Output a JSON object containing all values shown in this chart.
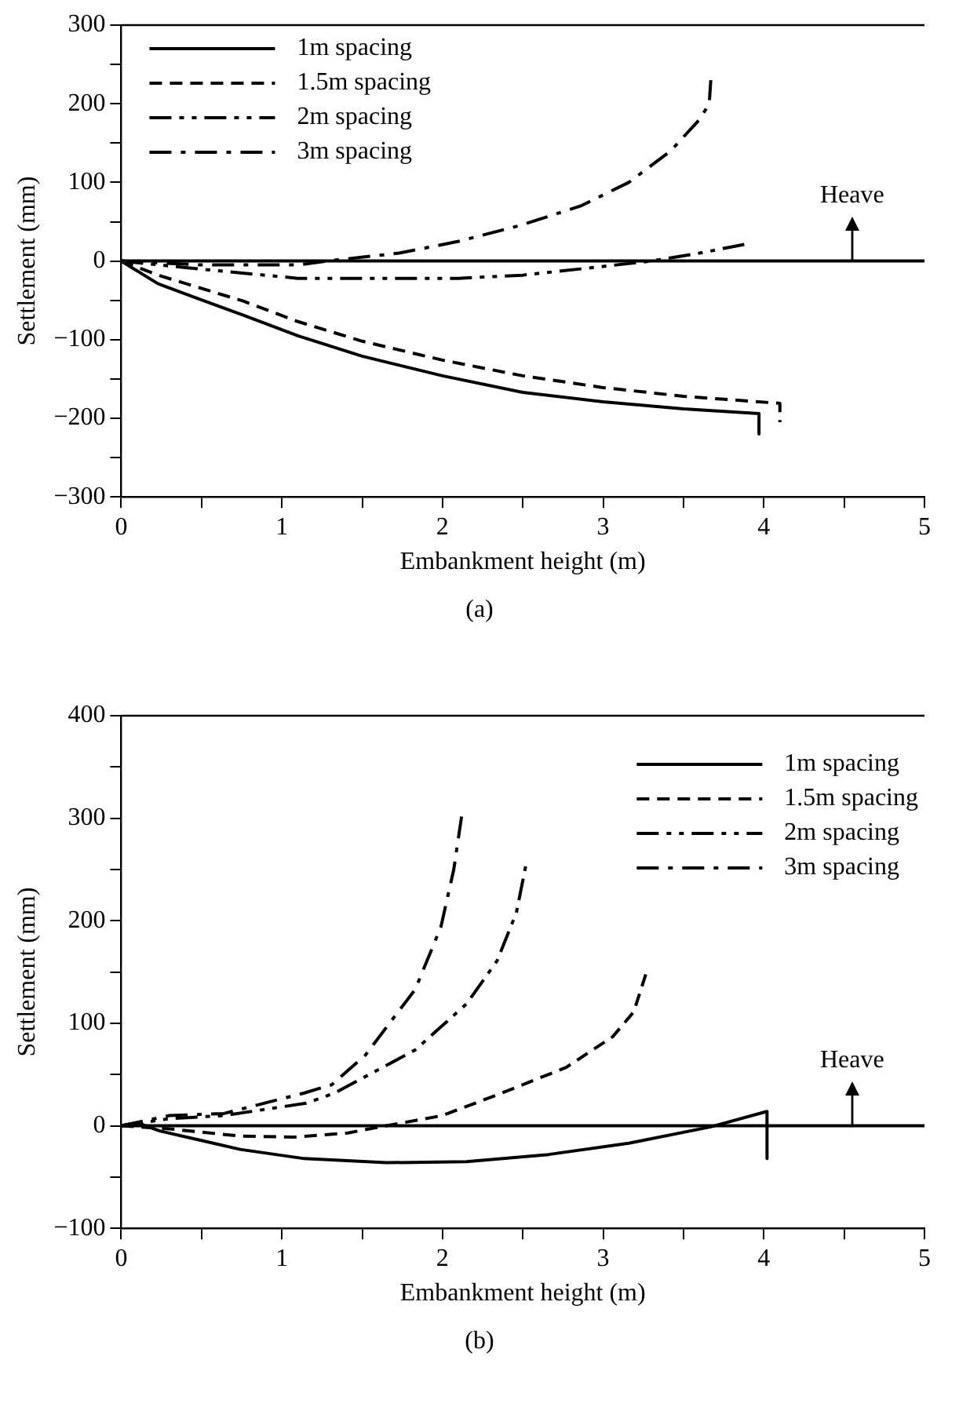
{
  "chart_data": [
    {
      "type": "line",
      "xlabel": "Embankment height (m)",
      "ylabel": "Settlement (mm)",
      "annotations": [
        "(a)",
        {
          "text": "Heave",
          "x": 4.55,
          "y": 0
        }
      ],
      "xlim": [
        0,
        5
      ],
      "xticks": [
        0,
        {
          "value": 0.5,
          "label": null
        },
        1,
        {
          "value": 1.5,
          "label": null
        },
        2,
        {
          "value": 2.5,
          "label": null
        },
        3,
        {
          "value": 3.5,
          "label": null
        },
        4,
        {
          "value": 4.5,
          "label": null
        },
        5
      ],
      "ylim": [
        -300,
        300
      ],
      "yticks": [
        -300,
        {
          "value": -250,
          "label": null
        },
        -200,
        {
          "value": -150,
          "label": null
        },
        -100,
        {
          "value": -50,
          "label": null
        },
        0,
        {
          "value": 50,
          "label": null
        },
        100,
        {
          "value": 150,
          "label": null
        },
        200,
        {
          "value": 250,
          "label": null
        },
        300
      ],
      "grid": false,
      "legend": "top left",
      "marker": "none",
      "ref_lines": [
        {
          "axis": "y",
          "value": 0,
          "color": "#000000",
          "line_style": "solid"
        }
      ],
      "series": [
        {
          "name": "1m spacing",
          "color": "#000000",
          "line_style": "solid",
          "x": [
            0,
            0.23,
            0.76,
            1.1,
            1.5,
            2.0,
            2.5,
            3.0,
            3.5,
            3.97,
            3.97
          ],
          "values": [
            0,
            -29,
            -69,
            -95,
            -121,
            -146,
            -167,
            -179,
            -188,
            -194,
            -220
          ]
        },
        {
          "name": "1.5m spacing",
          "color": "#000000",
          "line_style": "dashed",
          "x": [
            0,
            0.23,
            0.76,
            1.1,
            1.5,
            2.0,
            2.5,
            3.0,
            3.5,
            4.1,
            4.1
          ],
          "values": [
            0,
            -18,
            -51,
            -77,
            -102,
            -126,
            -146,
            -161,
            -172,
            -181,
            -205
          ]
        },
        {
          "name": "2m spacing",
          "color": "#000000",
          "line_style": "dashdotdot",
          "x": [
            0,
            0.53,
            1.1,
            1.6,
            2.1,
            2.5,
            2.86,
            3.3,
            3.6,
            3.9
          ],
          "values": [
            0,
            -11,
            -22,
            -22,
            -22,
            -18,
            -10,
            0,
            10,
            22
          ]
        },
        {
          "name": "3m spacing",
          "color": "#000000",
          "line_style": "dashdot",
          "x": [
            0,
            0.5,
            1.1,
            1.28,
            1.73,
            2.1,
            2.48,
            2.86,
            3.16,
            3.42,
            3.6,
            3.66,
            3.67
          ],
          "values": [
            0,
            -5,
            -5,
            0,
            10,
            25,
            45,
            70,
            100,
            140,
            180,
            200,
            230
          ]
        }
      ]
    },
    {
      "type": "line",
      "xlabel": "Embankment height (m)",
      "ylabel": "Settlement (mm)",
      "annotations": [
        "(b)",
        {
          "text": "Heave",
          "x": 4.55,
          "y": 0
        }
      ],
      "xlim": [
        0,
        5
      ],
      "xticks": [
        0,
        {
          "value": 0.5,
          "label": null
        },
        1,
        {
          "value": 1.5,
          "label": null
        },
        2,
        {
          "value": 2.5,
          "label": null
        },
        3,
        {
          "value": 3.5,
          "label": null
        },
        4,
        {
          "value": 4.5,
          "label": null
        },
        5
      ],
      "ylim": [
        -100,
        400
      ],
      "yticks": [
        -100,
        {
          "value": -50,
          "label": null
        },
        0,
        {
          "value": 50,
          "label": null
        },
        100,
        {
          "value": 150,
          "label": null
        },
        200,
        {
          "value": 250,
          "label": null
        },
        300,
        {
          "value": 350,
          "label": null
        },
        400
      ],
      "grid": false,
      "legend": "top right",
      "marker": "none",
      "ref_lines": [
        {
          "axis": "y",
          "value": 0,
          "color": "#000000",
          "line_style": "solid"
        }
      ],
      "series": [
        {
          "name": "1m spacing",
          "color": "#000000",
          "line_style": "solid",
          "x": [
            0,
            0.1,
            0.24,
            0.74,
            1.14,
            1.65,
            2.15,
            2.66,
            3.16,
            3.67,
            4.02,
            4.02
          ],
          "values": [
            0,
            3,
            -5,
            -23,
            -32,
            -36,
            -35,
            -28,
            -17,
            -1,
            14,
            -32
          ]
        },
        {
          "name": "1.5m spacing",
          "color": "#000000",
          "line_style": "dashed",
          "x": [
            0,
            0.3,
            0.74,
            1.08,
            1.41,
            1.65,
            2.0,
            2.37,
            2.77,
            3.06,
            3.19,
            3.27
          ],
          "values": [
            0,
            -3,
            -10,
            -11,
            -7,
            0,
            10,
            32,
            57,
            87,
            111,
            150
          ]
        },
        {
          "name": "2m spacing",
          "color": "#000000",
          "line_style": "dashdotdot",
          "x": [
            0,
            0.3,
            0.64,
            1.15,
            1.33,
            1.83,
            2.15,
            2.34,
            2.46,
            2.52
          ],
          "values": [
            0,
            7,
            10,
            22,
            32,
            74,
            119,
            161,
            208,
            255
          ]
        },
        {
          "name": "3m spacing",
          "color": "#000000",
          "line_style": "dashdot",
          "x": [
            0,
            0.3,
            0.64,
            1.14,
            1.31,
            1.52,
            1.83,
            1.99,
            2.07,
            2.12
          ],
          "values": [
            0,
            10,
            12,
            32,
            40,
            69,
            133,
            194,
            250,
            303
          ]
        }
      ]
    }
  ]
}
